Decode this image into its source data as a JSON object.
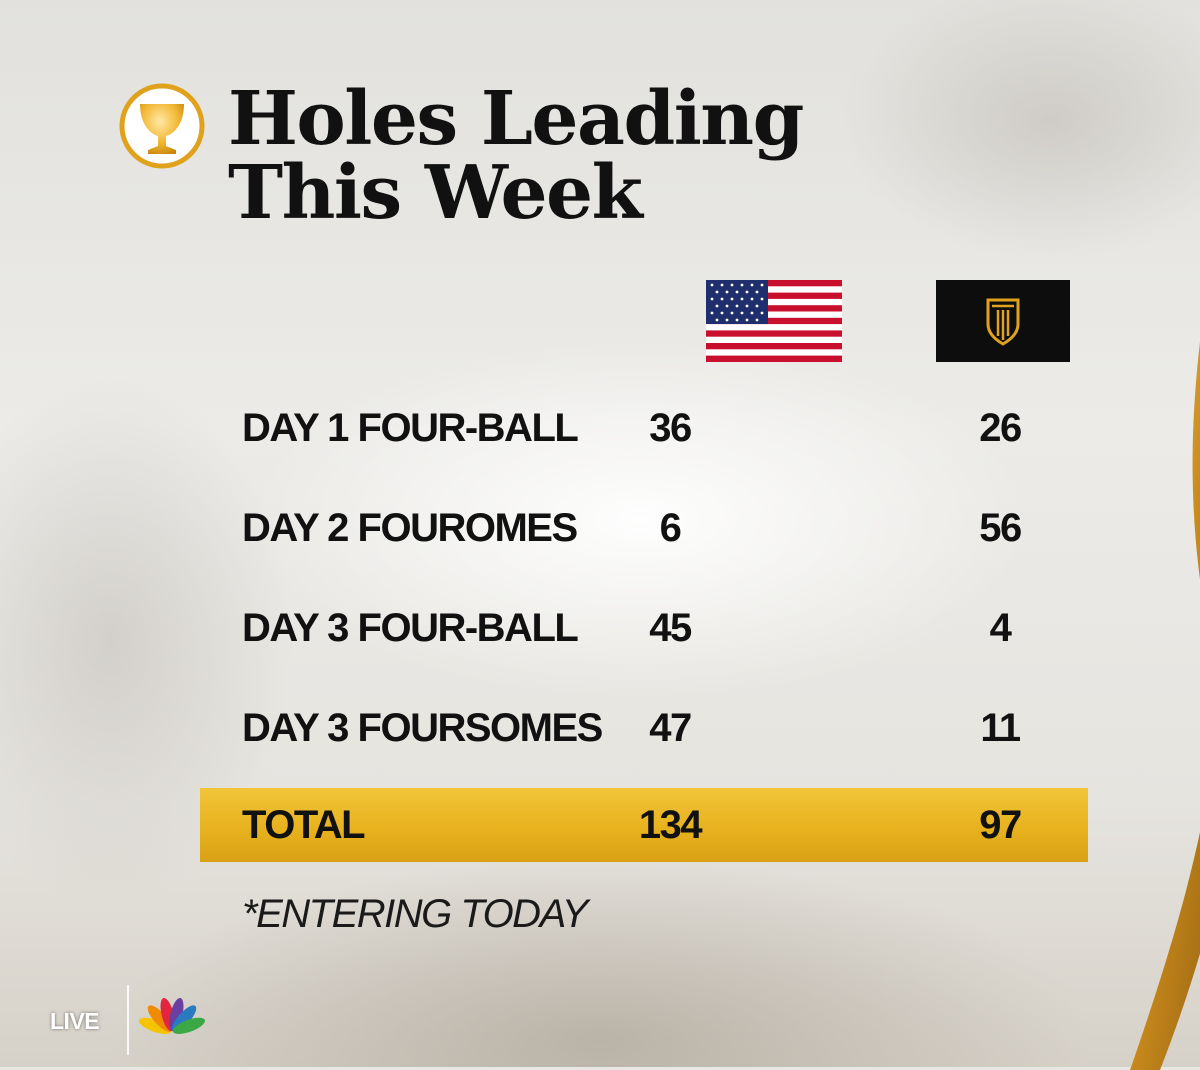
{
  "title": "Holes Leading\nThis Week",
  "teams": [
    {
      "flag": "us-flag-icon"
    },
    {
      "flag": "international-team-flag-icon"
    }
  ],
  "rows": [
    {
      "label": "DAY 1 FOUR-BALL",
      "v1": "36",
      "v2": "26"
    },
    {
      "label": "DAY 2 FOUROMES",
      "v1": "6",
      "v2": "56"
    },
    {
      "label": "DAY 3 FOUR-BALL",
      "v1": "45",
      "v2": "4"
    },
    {
      "label": "DAY 3 FOURSOMES",
      "v1": "47",
      "v2": "11"
    }
  ],
  "total": {
    "label": "TOTAL",
    "v1": "134",
    "v2": "97"
  },
  "footnote": "*ENTERING TODAY",
  "broadcast": {
    "live_label": "LIVE",
    "network_logo": "nbc-peacock-icon"
  },
  "colors": {
    "total_bar": "#e8b21e",
    "title_text": "#111111",
    "trophy_gold": "#e0a21c"
  }
}
